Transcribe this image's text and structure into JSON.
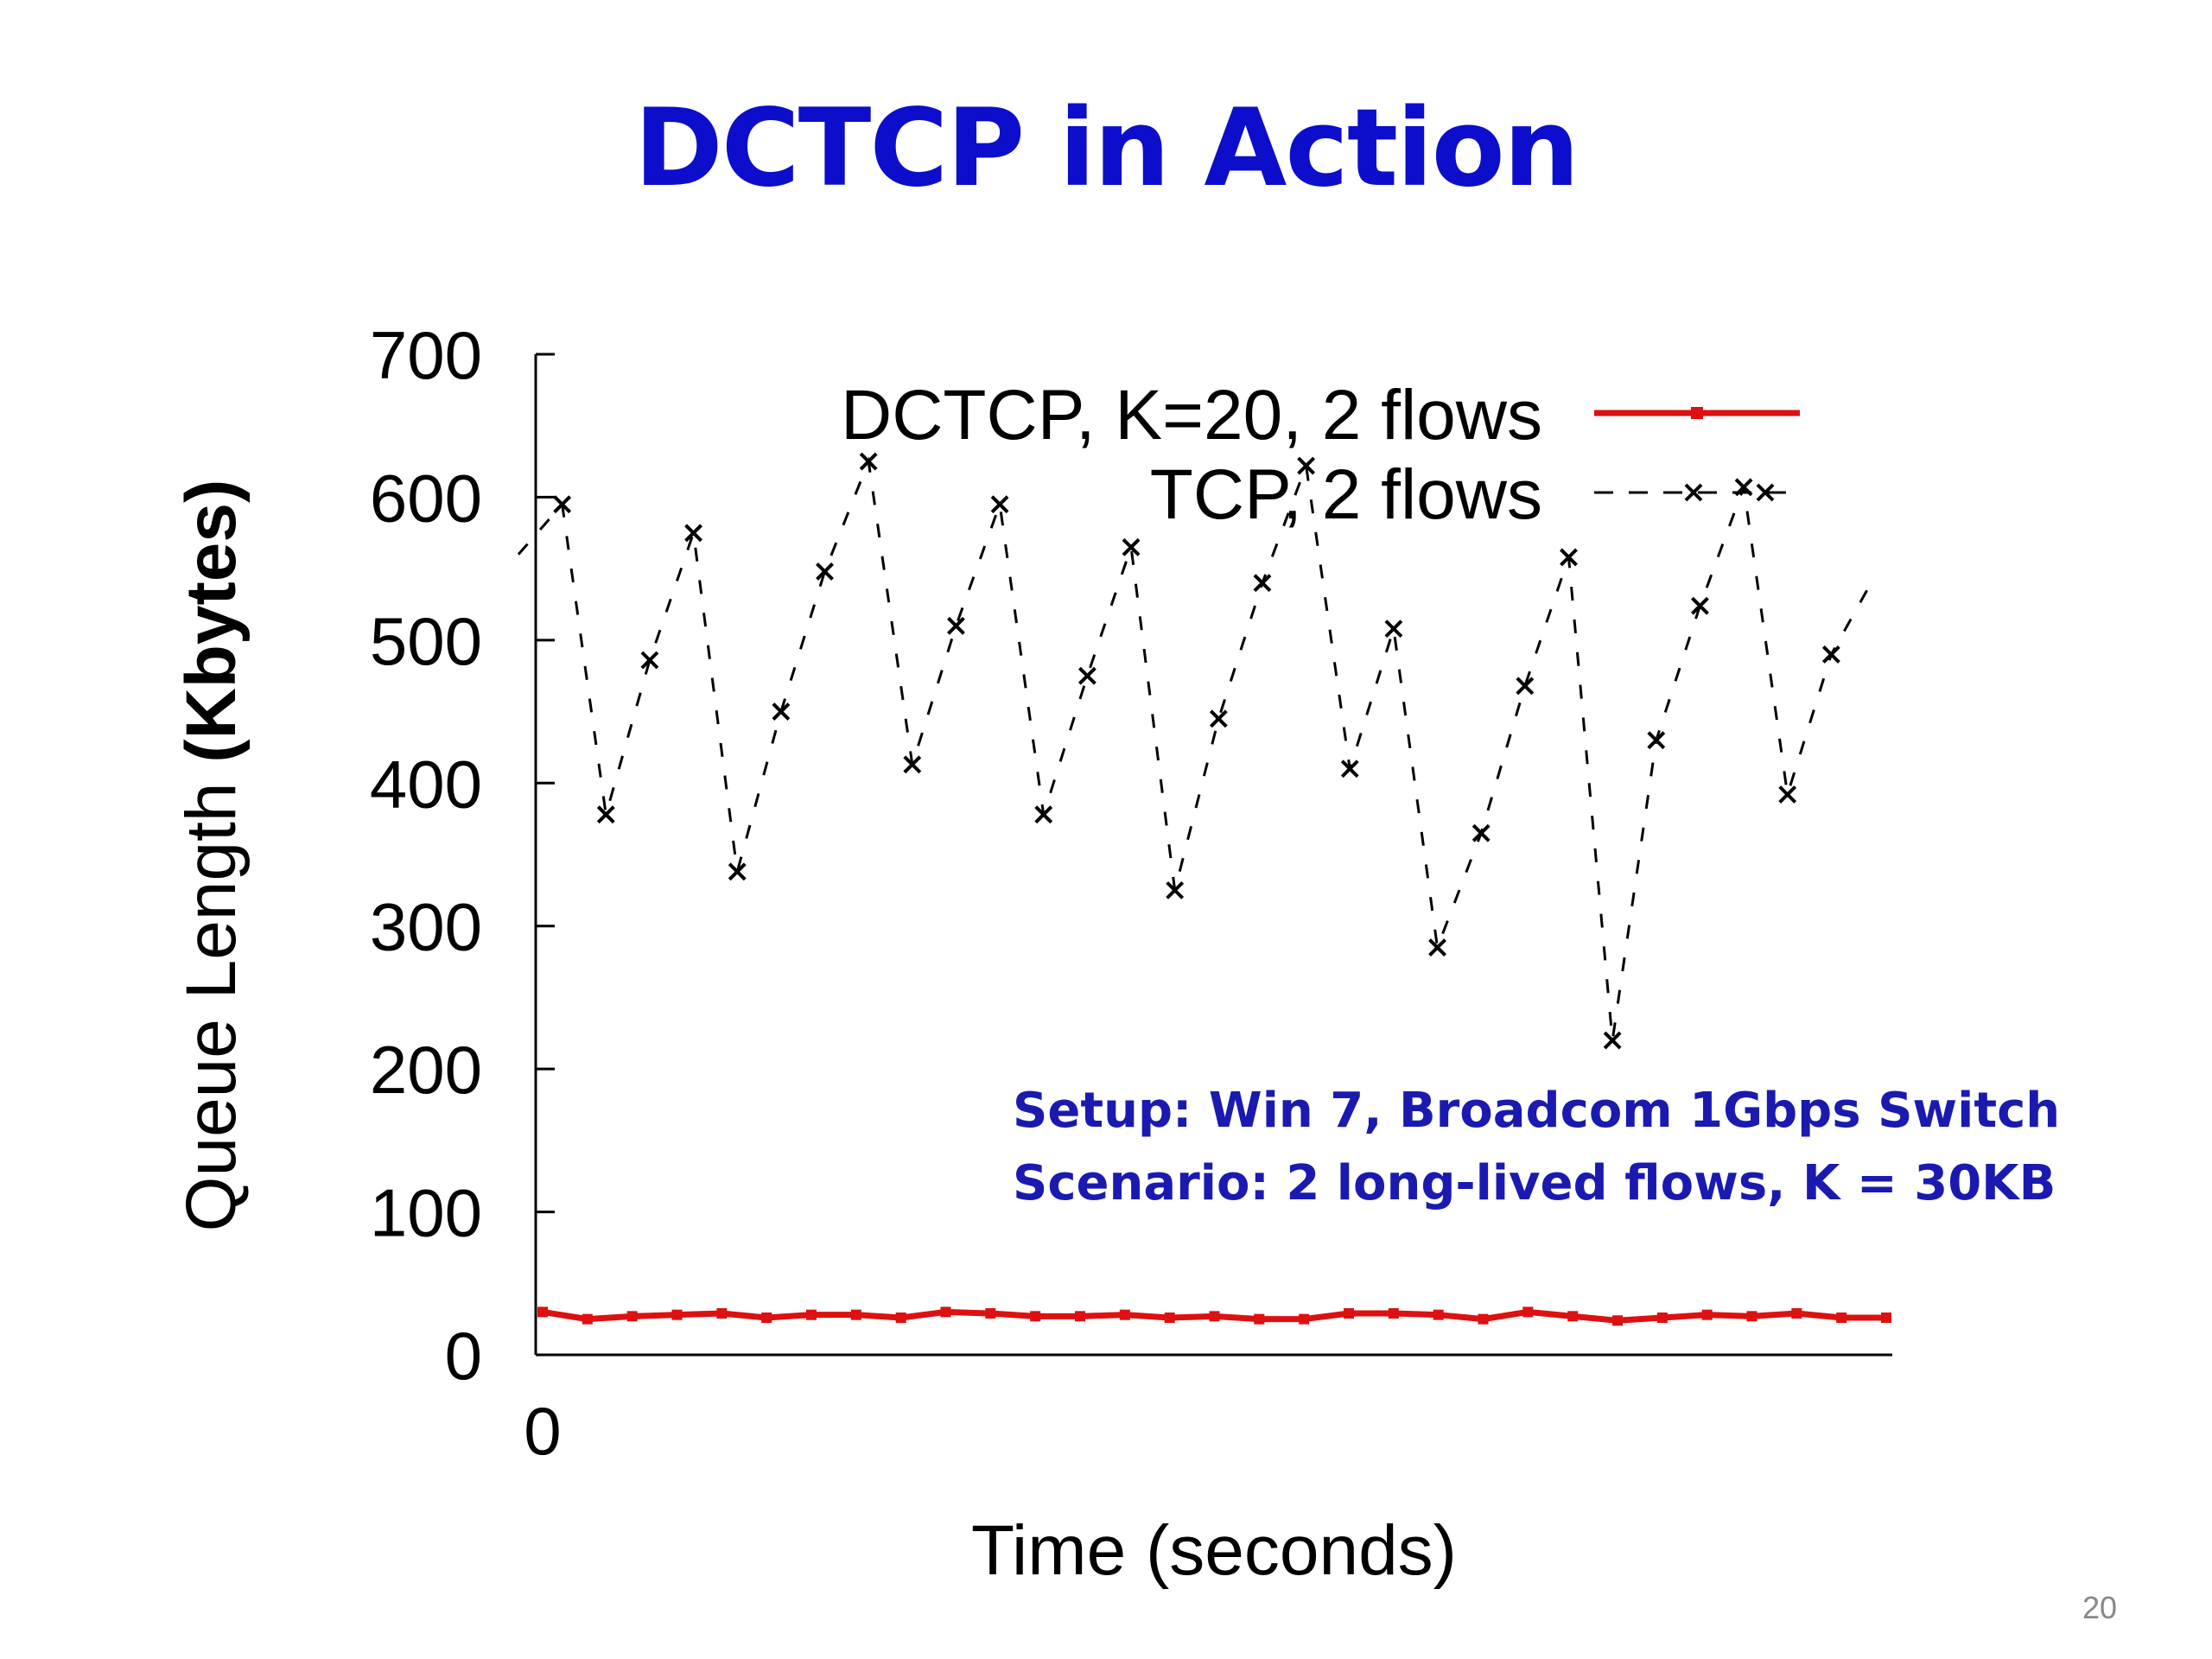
{
  "slide": {
    "title": "DCTCP in Action",
    "page_number": "20"
  },
  "annotation": {
    "setup": "Setup: Win 7, Broadcom 1Gbps Switch",
    "scenario": "Scenario: 2 long-lived flows, K = 30KB"
  },
  "colors": {
    "title": "#0d0dcc",
    "annotation": "#1a1ab0",
    "dctcp": "#dd1111",
    "tcp": "#000000"
  },
  "chart_data": {
    "type": "line",
    "ylabel_prefix": "Queue Length ",
    "ylabel_bold": "(Kbytes)",
    "xlabel": "Time (seconds)",
    "ylim": [
      0,
      700
    ],
    "yticks": [
      0,
      100,
      200,
      300,
      400,
      500,
      600,
      700
    ],
    "xticks": [
      "0"
    ],
    "grid": false,
    "legend_position": "top-right",
    "series": [
      {
        "name": "DCTCP, K=20, 2 flows",
        "style": "solid-red-with-dot-markers",
        "y": [
          30,
          25,
          27,
          28,
          29,
          26,
          28,
          28,
          26,
          30,
          29,
          27,
          27,
          28,
          26,
          27,
          25,
          25,
          29,
          29,
          28,
          25,
          30,
          27,
          24,
          26,
          28,
          27,
          29,
          26,
          26
        ]
      },
      {
        "name": "TCP, 2 flows",
        "style": "dashed-black-with-x-markers",
        "y": [
          560,
          595,
          378,
          486,
          575,
          338,
          450,
          548,
          625,
          413,
          510,
          595,
          378,
          475,
          565,
          325,
          445,
          540,
          622,
          410,
          508,
          285,
          365,
          468,
          558,
          220,
          430,
          524,
          607,
          392,
          490,
          545
        ]
      }
    ]
  }
}
